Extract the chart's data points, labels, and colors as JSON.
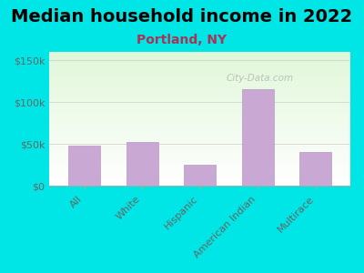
{
  "title": "Median household income in 2022",
  "subtitle": "Portland, NY",
  "categories": [
    "All",
    "White",
    "Hispanic",
    "American Indian",
    "Multirace"
  ],
  "values": [
    48000,
    52000,
    25000,
    115000,
    40000
  ],
  "bar_color": "#c9a8d4",
  "bar_edge_color": "#b898c8",
  "background_color": "#00e5e5",
  "title_fontsize": 14,
  "subtitle_fontsize": 10,
  "subtitle_color": "#aa3355",
  "tick_color": "#666666",
  "ylim": [
    0,
    160000
  ],
  "yticks": [
    0,
    50000,
    100000,
    150000
  ],
  "ytick_labels": [
    "$0",
    "$50k",
    "$100k",
    "$150k"
  ],
  "watermark": "City-Data.com"
}
